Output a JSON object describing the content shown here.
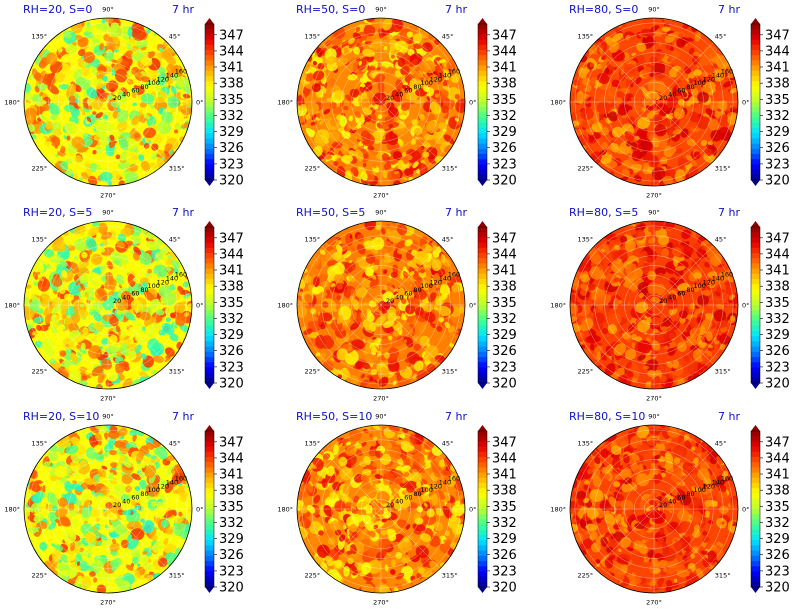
{
  "chart_data": {
    "type": "heatmap",
    "projection": "polar",
    "grid": true,
    "theta_tick_labels": [
      "0°",
      "45°",
      "90°",
      "135°",
      "180°",
      "225°",
      "270°",
      "315°"
    ],
    "r_tick_labels": [
      "20",
      "40",
      "60",
      "80",
      "100",
      "120",
      "140",
      "160"
    ],
    "r_range": [
      0,
      170
    ],
    "colorbar": {
      "ticks": [
        "347",
        "344",
        "341",
        "338",
        "335",
        "332",
        "329",
        "326",
        "323",
        "320"
      ],
      "range": [
        320,
        349
      ],
      "colormap": [
        "#00008b",
        "#0000ff",
        "#0080ff",
        "#00e5ff",
        "#40ff90",
        "#b8ff30",
        "#ffff00",
        "#ffb000",
        "#ff5000",
        "#e60000",
        "#8b0000"
      ]
    },
    "panels": [
      {
        "title": "RH=20, S=0",
        "time": "7 hr",
        "mean_value": 337.5,
        "spread": 4.5
      },
      {
        "title": "RH=50, S=0",
        "time": "7 hr",
        "mean_value": 341.5,
        "spread": 3.0
      },
      {
        "title": "RH=80, S=0",
        "time": "7 hr",
        "mean_value": 343.5,
        "spread": 2.2
      },
      {
        "title": "RH=20, S=5",
        "time": "7 hr",
        "mean_value": 337.5,
        "spread": 4.5
      },
      {
        "title": "RH=50, S=5",
        "time": "7 hr",
        "mean_value": 341.8,
        "spread": 2.8
      },
      {
        "title": "RH=80, S=5",
        "time": "7 hr",
        "mean_value": 343.8,
        "spread": 2.0
      },
      {
        "title": "RH=20, S=10",
        "time": "7 hr",
        "mean_value": 337.2,
        "spread": 4.6
      },
      {
        "title": "RH=50, S=10",
        "time": "7 hr",
        "mean_value": 341.5,
        "spread": 3.0
      },
      {
        "title": "RH=80, S=10",
        "time": "7 hr",
        "mean_value": 343.6,
        "spread": 2.1
      }
    ]
  }
}
